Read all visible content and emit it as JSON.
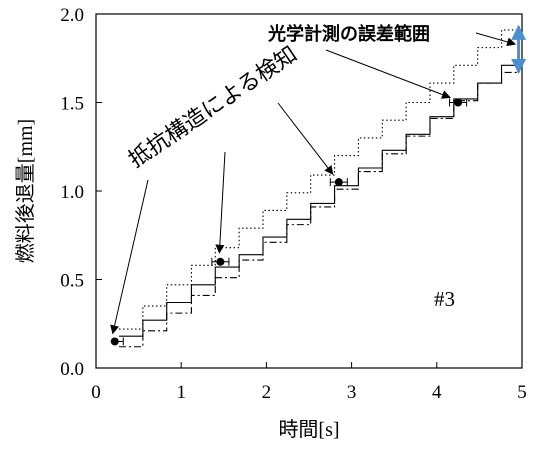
{
  "chart_data": {
    "type": "line",
    "title": "",
    "xlabel": "時間[s]",
    "ylabel": "燃料後退量[mm]",
    "xlim": [
      0,
      5
    ],
    "ylim": [
      0,
      2
    ],
    "xticks": [
      0,
      1,
      2,
      3,
      4,
      5
    ],
    "xtick_labels": [
      "0",
      "1",
      "2",
      "3",
      "4",
      "5"
    ],
    "yticks": [
      0,
      0.5,
      1,
      1.5,
      2
    ],
    "ytick_labels": [
      "0.0",
      "0.5",
      "1.0",
      "1.5",
      "2.0"
    ],
    "grid": false,
    "legend": "none",
    "series": [
      {
        "style": "solid",
        "color": "#000000",
        "steps_x": [
          0.27,
          0.55,
          0.83,
          1.12,
          1.4,
          1.68,
          1.96,
          2.24,
          2.52,
          2.8,
          3.08,
          3.36,
          3.64,
          3.92,
          4.2,
          4.48,
          4.76,
          4.96
        ],
        "steps_y": [
          0.18,
          0.27,
          0.37,
          0.47,
          0.57,
          0.64,
          0.74,
          0.84,
          0.93,
          1.03,
          1.13,
          1.23,
          1.32,
          1.42,
          1.52,
          1.61,
          1.71,
          1.8
        ]
      },
      {
        "style": "dotted",
        "color": "#000000",
        "steps_x": [
          0.27,
          0.55,
          0.83,
          1.12,
          1.4,
          1.68,
          1.96,
          2.24,
          2.52,
          2.8,
          3.08,
          3.36,
          3.64,
          3.92,
          4.2,
          4.48,
          4.76,
          4.96
        ],
        "steps_y": [
          0.22,
          0.35,
          0.47,
          0.58,
          0.68,
          0.79,
          0.89,
          0.99,
          1.09,
          1.2,
          1.3,
          1.4,
          1.5,
          1.61,
          1.71,
          1.81,
          1.91,
          1.91
        ]
      },
      {
        "style": "dashdot",
        "color": "#000000",
        "steps_x": [
          0.27,
          0.55,
          0.83,
          1.12,
          1.4,
          1.68,
          1.96,
          2.24,
          2.52,
          2.8,
          3.08,
          3.36,
          3.64,
          3.92,
          4.2,
          4.48,
          4.76,
          4.96
        ],
        "steps_y": [
          0.12,
          0.21,
          0.31,
          0.41,
          0.51,
          0.61,
          0.71,
          0.81,
          0.91,
          1.01,
          1.11,
          1.21,
          1.31,
          1.41,
          1.51,
          1.61,
          1.67,
          1.73
        ]
      }
    ],
    "detections": [
      {
        "x": 0.22,
        "y": 0.15,
        "xerr_minus": 0.0,
        "xerr_plus": 0.1
      },
      {
        "x": 1.46,
        "y": 0.6,
        "xerr_minus": 0.1,
        "xerr_plus": 0.1
      },
      {
        "x": 2.85,
        "y": 1.05,
        "xerr_minus": 0.1,
        "xerr_plus": 0.1
      },
      {
        "x": 4.25,
        "y": 1.5,
        "xerr_minus": 0.1,
        "xerr_plus": 0.1
      }
    ],
    "annotations": {
      "detection_label": "抵抗構造による検知",
      "error_label": "光学計測の誤差範囲",
      "sample_label": "#3",
      "error_arrow_color": "#4a8fcf"
    }
  }
}
